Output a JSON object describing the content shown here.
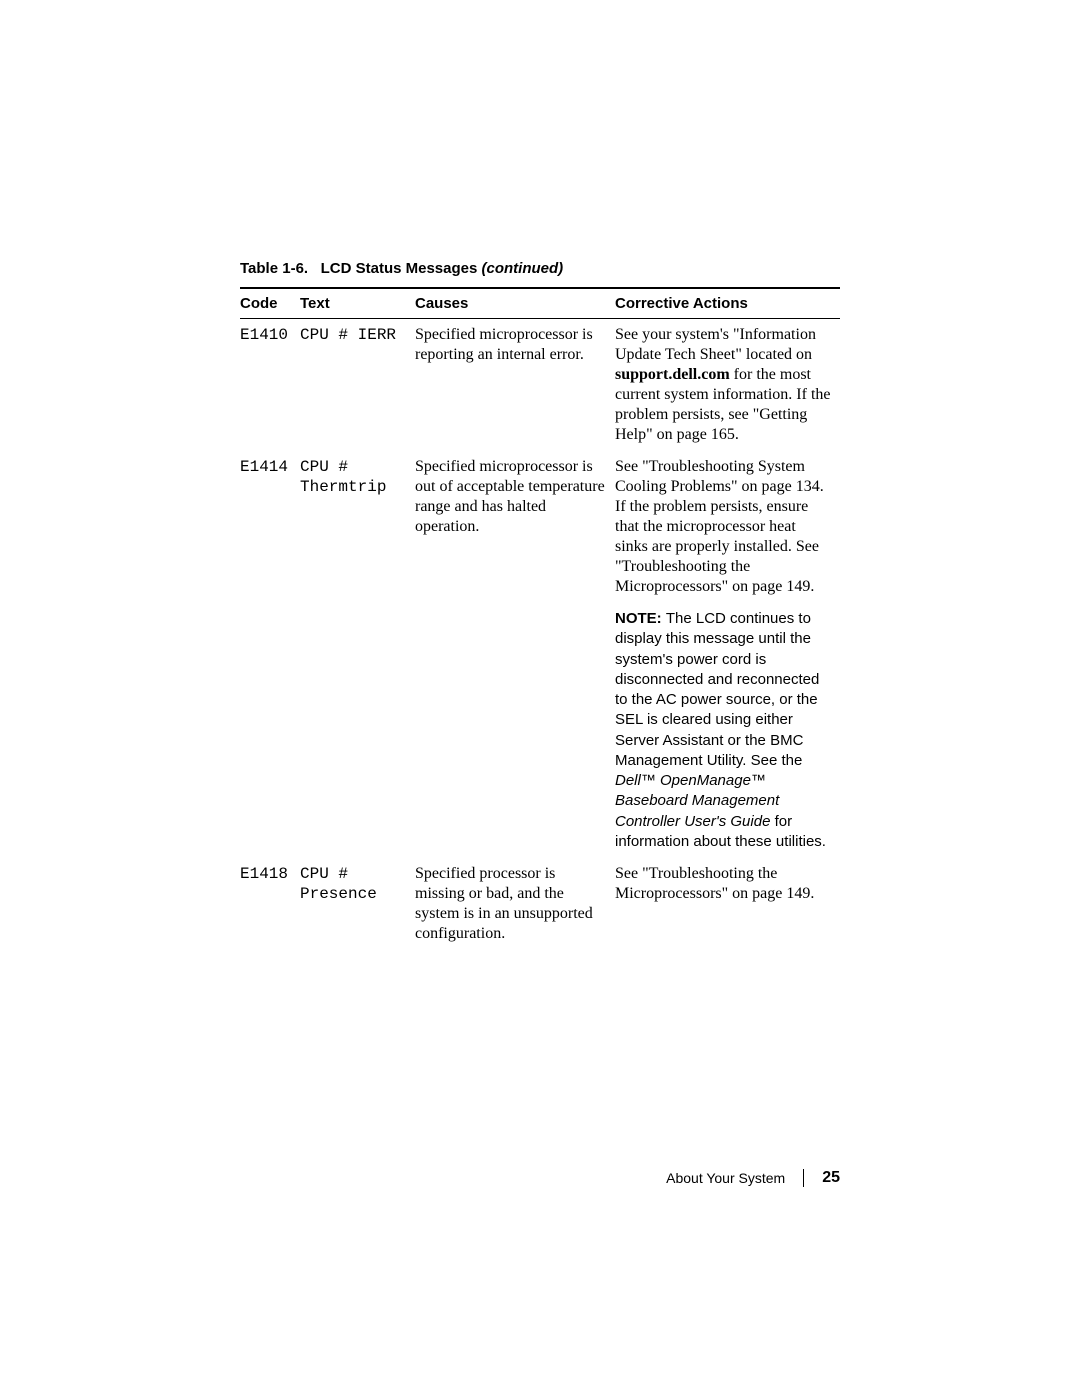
{
  "table": {
    "caption_prefix": "Table 1-6.",
    "caption_title": "LCD Status Messages",
    "caption_suffix": "(continued)",
    "headers": {
      "code": "Code",
      "text": "Text",
      "causes": "Causes",
      "corrective": "Corrective Actions"
    },
    "rows": [
      {
        "code": "E1410",
        "text": "CPU # IERR",
        "causes": "Specified microprocessor is reporting an internal error.",
        "corr_pre": "See your system's \"Information Update Tech Sheet\" located on ",
        "corr_bold": "support.dell.com",
        "corr_post": " for the most current system information. If the problem persists, see \"Getting Help\" on page 165."
      },
      {
        "code": "E1414",
        "text": "CPU #\nThermtrip",
        "causes": "Specified microprocessor is out of acceptable temperature range and has halted operation.",
        "corr_plain": "See \"Troubleshooting System Cooling Problems\" on page 134. If the problem persists, ensure that the microprocessor heat sinks are properly installed. See \"Troubleshooting the Microprocessors\" on page 149.",
        "note_label": "NOTE: ",
        "note_a": "The LCD continues to display this message until the system's power cord is disconnected and reconnected to the AC power source, or the SEL is cleared using either Server Assistant or the BMC Management Utility. See the ",
        "note_ital1": "Dell™ OpenManage™ Baseboard Management Controller User's Guide",
        "note_b": " for information about these utilities."
      },
      {
        "code": "E1418",
        "text": "CPU #\nPresence",
        "causes": "Specified processor is missing or bad, and the system is in an unsupported configuration.",
        "corr_plain": "See \"Troubleshooting the Microprocessors\" on page 149."
      }
    ]
  },
  "footer": {
    "section": "About Your System",
    "page": "25"
  }
}
